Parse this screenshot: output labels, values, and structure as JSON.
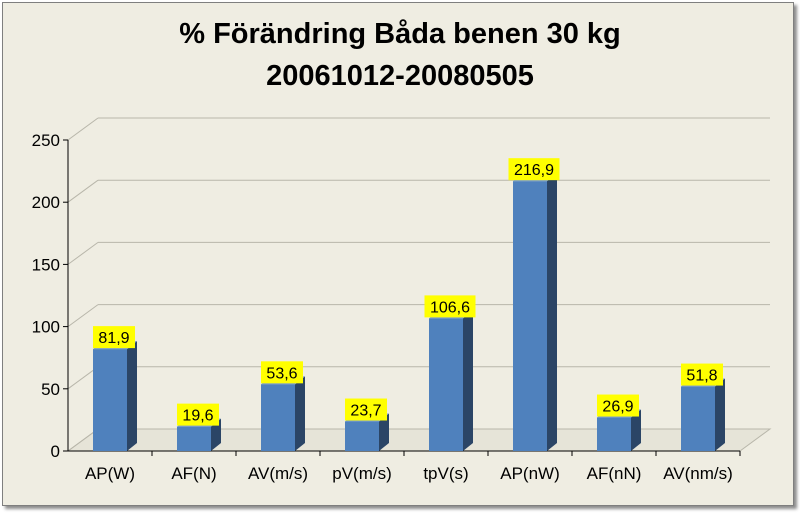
{
  "chart_data": {
    "type": "bar",
    "title": "% Förändring Båda benen 30 kg",
    "subtitle": "20061012-20080505",
    "categories": [
      "AP(W)",
      "AF(N)",
      "AV(m/s)",
      "pV(m/s)",
      "tpV(s)",
      "AP(nW)",
      "AF(nN)",
      "AV(nm/s)"
    ],
    "values": [
      81.9,
      19.6,
      53.6,
      23.7,
      106.6,
      216.9,
      26.9,
      51.8
    ],
    "value_labels": [
      "81,9",
      "19,6",
      "53,6",
      "23,7",
      "106,6",
      "216,9",
      "26,9",
      "51,8"
    ],
    "y_ticks": [
      "0",
      "50",
      "100",
      "150",
      "200",
      "250"
    ],
    "ylim": [
      0,
      250
    ],
    "grid": true,
    "legend": "none",
    "colors": {
      "bar_front": "#4f81bd",
      "bar_side": "#2b4566",
      "bar_top": "#7d9fcc",
      "label_bg": "#ffff00",
      "background": "#efede2",
      "grid": "#b8b6aa"
    }
  }
}
